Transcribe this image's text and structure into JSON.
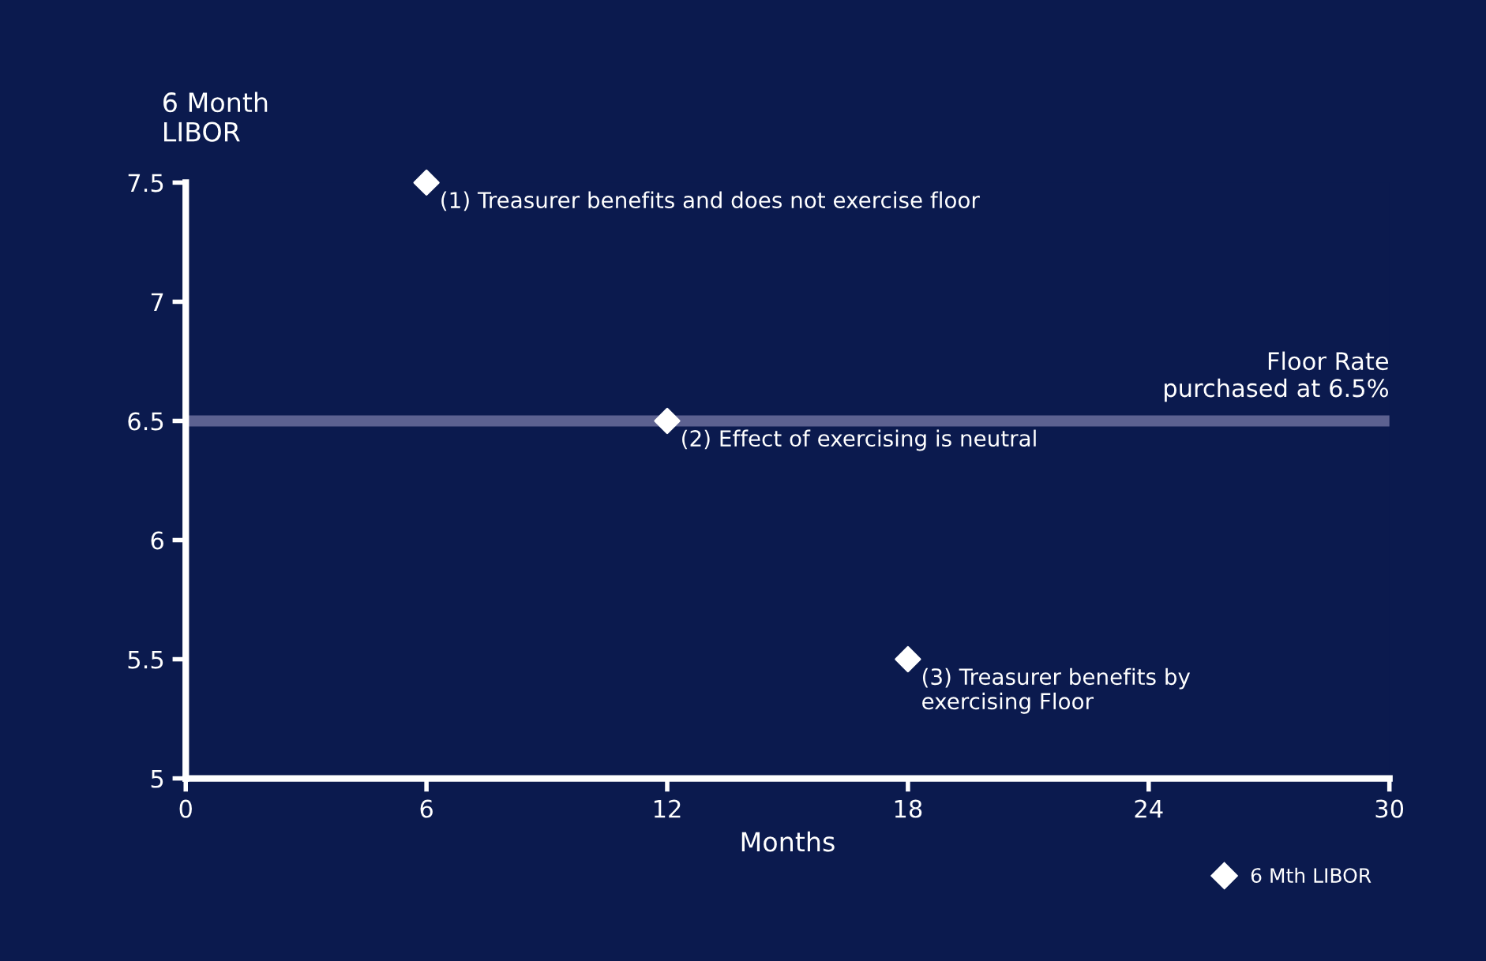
{
  "chart_data": {
    "type": "scatter",
    "xlabel": "Months",
    "ylabel": "6 Month\nLIBOR",
    "x": [
      6,
      12,
      18
    ],
    "series": [
      {
        "name": "6 Mth LIBOR",
        "color": "#ffffff",
        "values": [
          7.5,
          6.5,
          5.5
        ]
      }
    ],
    "marker": "diamond",
    "xlim": [
      0,
      30
    ],
    "ylim": [
      5,
      7.5
    ],
    "xticks": [
      0,
      6,
      12,
      18,
      24,
      30
    ],
    "yticks": [
      5,
      5.5,
      6,
      6.5,
      7,
      7.5
    ],
    "ref_lines": [
      {
        "axis": "y",
        "value": 6.5,
        "label": "Floor Rate\npurchased at 6.5%",
        "color": "#5c6190"
      }
    ],
    "annotations": [
      {
        "text": "(1) Treasurer benefits and does not exercise floor",
        "x": 6,
        "y": 7.5
      },
      {
        "text": "(2) Effect of exercising is neutral",
        "x": 12,
        "y": 6.5
      },
      {
        "text": "(3) Treasurer benefits by\nexercising Floor",
        "x": 18,
        "y": 5.5
      }
    ],
    "grid": false,
    "legend": "bottom right"
  }
}
